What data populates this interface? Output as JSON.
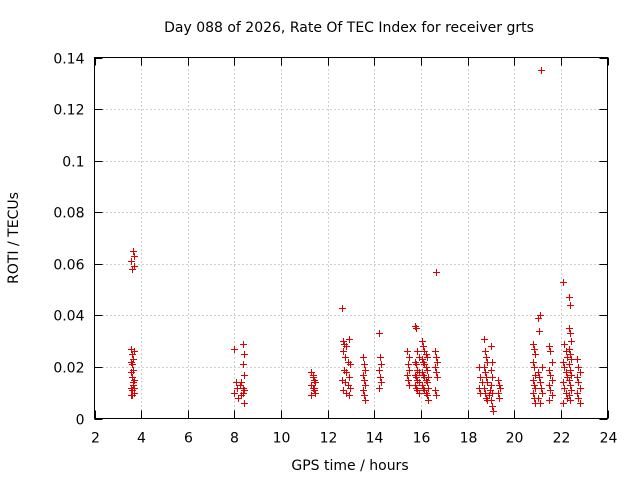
{
  "chart_data": {
    "type": "scatter",
    "title": "Day 088 of 2026, Rate Of TEC Index for receiver grts",
    "xlabel": "GPS time / hours",
    "ylabel": "ROTI / TECUs",
    "xlim": [
      2,
      24
    ],
    "ylim": [
      0,
      0.14
    ],
    "xticks": [
      2,
      4,
      6,
      8,
      10,
      12,
      14,
      16,
      18,
      20,
      22,
      24
    ],
    "xtick_labels": [
      "2",
      "4",
      "6",
      "8",
      "10",
      "12",
      "14",
      "16",
      "18",
      "20",
      "22",
      "24"
    ],
    "yticks": [
      0,
      0.02,
      0.04,
      0.06,
      0.08,
      0.1,
      0.12,
      0.14
    ],
    "ytick_labels": [
      "0",
      "0.02",
      "0.04",
      "0.06",
      "0.08",
      "0.1",
      "0.12",
      "0.14"
    ],
    "grid": true,
    "marker": "plus",
    "color": "#e00000",
    "series": [
      {
        "name": "ROTI",
        "points": [
          [
            3.55,
            0.061
          ],
          [
            3.6,
            0.058
          ],
          [
            3.65,
            0.065
          ],
          [
            3.7,
            0.063
          ],
          [
            3.68,
            0.059
          ],
          [
            3.55,
            0.027
          ],
          [
            3.6,
            0.025
          ],
          [
            3.65,
            0.023
          ],
          [
            3.7,
            0.026
          ],
          [
            3.62,
            0.021
          ],
          [
            3.55,
            0.018
          ],
          [
            3.6,
            0.016
          ],
          [
            3.7,
            0.015
          ],
          [
            3.65,
            0.013
          ],
          [
            3.58,
            0.012
          ],
          [
            3.6,
            0.011
          ],
          [
            3.68,
            0.01
          ],
          [
            3.55,
            0.009
          ],
          [
            3.62,
            0.009
          ],
          [
            3.7,
            0.012
          ],
          [
            3.63,
            0.014
          ],
          [
            3.57,
            0.022
          ],
          [
            3.66,
            0.019
          ],
          [
            8.0,
            0.027
          ],
          [
            8.05,
            0.014
          ],
          [
            8.1,
            0.012
          ],
          [
            8.0,
            0.01
          ],
          [
            8.15,
            0.008
          ],
          [
            8.35,
            0.029
          ],
          [
            8.4,
            0.025
          ],
          [
            8.35,
            0.021
          ],
          [
            8.4,
            0.017
          ],
          [
            8.3,
            0.014
          ],
          [
            8.35,
            0.012
          ],
          [
            8.4,
            0.011
          ],
          [
            8.3,
            0.009
          ],
          [
            8.4,
            0.006
          ],
          [
            8.35,
            0.01
          ],
          [
            8.25,
            0.013
          ],
          [
            11.3,
            0.018
          ],
          [
            11.35,
            0.016
          ],
          [
            11.4,
            0.015
          ],
          [
            11.45,
            0.014
          ],
          [
            11.3,
            0.013
          ],
          [
            11.35,
            0.012
          ],
          [
            11.4,
            0.011
          ],
          [
            11.45,
            0.01
          ],
          [
            11.3,
            0.009
          ],
          [
            11.38,
            0.017
          ],
          [
            11.42,
            0.012
          ],
          [
            12.6,
            0.043
          ],
          [
            12.65,
            0.03
          ],
          [
            12.7,
            0.029
          ],
          [
            12.8,
            0.028
          ],
          [
            12.9,
            0.031
          ],
          [
            12.65,
            0.026
          ],
          [
            12.75,
            0.024
          ],
          [
            12.85,
            0.022
          ],
          [
            12.95,
            0.021
          ],
          [
            12.7,
            0.019
          ],
          [
            12.8,
            0.018
          ],
          [
            12.9,
            0.016
          ],
          [
            12.6,
            0.015
          ],
          [
            12.75,
            0.014
          ],
          [
            12.85,
            0.013
          ],
          [
            12.95,
            0.012
          ],
          [
            12.65,
            0.011
          ],
          [
            12.8,
            0.01
          ],
          [
            12.9,
            0.009
          ],
          [
            13.5,
            0.024
          ],
          [
            13.55,
            0.021
          ],
          [
            13.6,
            0.019
          ],
          [
            13.5,
            0.017
          ],
          [
            13.55,
            0.015
          ],
          [
            13.6,
            0.013
          ],
          [
            13.5,
            0.011
          ],
          [
            13.55,
            0.009
          ],
          [
            13.6,
            0.007
          ],
          [
            14.2,
            0.033
          ],
          [
            14.25,
            0.024
          ],
          [
            14.3,
            0.021
          ],
          [
            14.2,
            0.019
          ],
          [
            14.25,
            0.016
          ],
          [
            14.3,
            0.014
          ],
          [
            14.2,
            0.012
          ],
          [
            15.4,
            0.026
          ],
          [
            15.5,
            0.024
          ],
          [
            15.45,
            0.021
          ],
          [
            15.5,
            0.019
          ],
          [
            15.4,
            0.017
          ],
          [
            15.45,
            0.015
          ],
          [
            15.5,
            0.013
          ],
          [
            15.75,
            0.036
          ],
          [
            15.8,
            0.035
          ],
          [
            15.85,
            0.026
          ],
          [
            15.9,
            0.024
          ],
          [
            15.75,
            0.022
          ],
          [
            15.8,
            0.021
          ],
          [
            15.85,
            0.019
          ],
          [
            15.9,
            0.018
          ],
          [
            15.75,
            0.017
          ],
          [
            15.8,
            0.016
          ],
          [
            15.85,
            0.015
          ],
          [
            15.9,
            0.014
          ],
          [
            15.75,
            0.013
          ],
          [
            15.8,
            0.012
          ],
          [
            15.85,
            0.011
          ],
          [
            15.9,
            0.01
          ],
          [
            16.05,
            0.03
          ],
          [
            16.1,
            0.028
          ],
          [
            16.15,
            0.026
          ],
          [
            16.2,
            0.025
          ],
          [
            16.25,
            0.024
          ],
          [
            16.05,
            0.023
          ],
          [
            16.1,
            0.022
          ],
          [
            16.15,
            0.021
          ],
          [
            16.2,
            0.02
          ],
          [
            16.25,
            0.019
          ],
          [
            16.05,
            0.018
          ],
          [
            16.1,
            0.017
          ],
          [
            16.15,
            0.016
          ],
          [
            16.2,
            0.015
          ],
          [
            16.25,
            0.014
          ],
          [
            16.05,
            0.013
          ],
          [
            16.1,
            0.012
          ],
          [
            16.15,
            0.011
          ],
          [
            16.2,
            0.01
          ],
          [
            16.25,
            0.009
          ],
          [
            16.3,
            0.007
          ],
          [
            16.3,
            0.012
          ],
          [
            16.3,
            0.016
          ],
          [
            16.65,
            0.057
          ],
          [
            16.6,
            0.026
          ],
          [
            16.65,
            0.024
          ],
          [
            16.7,
            0.022
          ],
          [
            16.6,
            0.02
          ],
          [
            16.65,
            0.018
          ],
          [
            16.7,
            0.016
          ],
          [
            16.6,
            0.011
          ],
          [
            16.65,
            0.009
          ],
          [
            18.5,
            0.02
          ],
          [
            18.55,
            0.016
          ],
          [
            18.6,
            0.014
          ],
          [
            18.5,
            0.012
          ],
          [
            18.55,
            0.01
          ],
          [
            18.7,
            0.031
          ],
          [
            18.75,
            0.026
          ],
          [
            18.8,
            0.024
          ],
          [
            18.85,
            0.022
          ],
          [
            18.7,
            0.02
          ],
          [
            18.75,
            0.018
          ],
          [
            18.8,
            0.016
          ],
          [
            18.85,
            0.014
          ],
          [
            18.7,
            0.012
          ],
          [
            18.75,
            0.01
          ],
          [
            18.8,
            0.008
          ],
          [
            18.85,
            0.007
          ],
          [
            18.9,
            0.009
          ],
          [
            18.95,
            0.011
          ],
          [
            19.0,
            0.028
          ],
          [
            19.05,
            0.022
          ],
          [
            19.0,
            0.019
          ],
          [
            19.05,
            0.016
          ],
          [
            19.0,
            0.013
          ],
          [
            19.05,
            0.01
          ],
          [
            19.0,
            0.007
          ],
          [
            19.05,
            0.005
          ],
          [
            19.1,
            0.003
          ],
          [
            19.3,
            0.015
          ],
          [
            19.35,
            0.013
          ],
          [
            19.4,
            0.012
          ],
          [
            19.3,
            0.01
          ],
          [
            19.35,
            0.008
          ],
          [
            20.8,
            0.029
          ],
          [
            20.85,
            0.027
          ],
          [
            20.9,
            0.025
          ],
          [
            20.8,
            0.022
          ],
          [
            20.85,
            0.02
          ],
          [
            20.9,
            0.017
          ],
          [
            20.8,
            0.015
          ],
          [
            20.85,
            0.013
          ],
          [
            20.9,
            0.012
          ],
          [
            20.8,
            0.01
          ],
          [
            20.85,
            0.008
          ],
          [
            20.9,
            0.006
          ],
          [
            21.0,
            0.039
          ],
          [
            21.05,
            0.034
          ],
          [
            21.1,
            0.04
          ],
          [
            21.15,
            0.135
          ],
          [
            21.2,
            0.02
          ],
          [
            21.0,
            0.018
          ],
          [
            21.05,
            0.016
          ],
          [
            21.1,
            0.014
          ],
          [
            21.15,
            0.012
          ],
          [
            21.2,
            0.01
          ],
          [
            21.0,
            0.008
          ],
          [
            21.1,
            0.006
          ],
          [
            21.5,
            0.028
          ],
          [
            21.55,
            0.026
          ],
          [
            21.6,
            0.022
          ],
          [
            21.5,
            0.019
          ],
          [
            21.55,
            0.017
          ],
          [
            21.6,
            0.015
          ],
          [
            21.5,
            0.013
          ],
          [
            21.55,
            0.011
          ],
          [
            21.6,
            0.009
          ],
          [
            21.5,
            0.007
          ],
          [
            22.1,
            0.053
          ],
          [
            22.15,
            0.029
          ],
          [
            22.2,
            0.026
          ],
          [
            22.25,
            0.024
          ],
          [
            22.1,
            0.022
          ],
          [
            22.15,
            0.02
          ],
          [
            22.2,
            0.018
          ],
          [
            22.25,
            0.016
          ],
          [
            22.1,
            0.014
          ],
          [
            22.15,
            0.012
          ],
          [
            22.2,
            0.01
          ],
          [
            22.25,
            0.008
          ],
          [
            22.1,
            0.006
          ],
          [
            22.35,
            0.047
          ],
          [
            22.4,
            0.044
          ],
          [
            22.35,
            0.035
          ],
          [
            22.4,
            0.033
          ],
          [
            22.45,
            0.03
          ],
          [
            22.35,
            0.027
          ],
          [
            22.4,
            0.025
          ],
          [
            22.45,
            0.023
          ],
          [
            22.35,
            0.021
          ],
          [
            22.4,
            0.019
          ],
          [
            22.45,
            0.017
          ],
          [
            22.35,
            0.015
          ],
          [
            22.4,
            0.013
          ],
          [
            22.45,
            0.011
          ],
          [
            22.35,
            0.009
          ],
          [
            22.4,
            0.007
          ],
          [
            22.7,
            0.023
          ],
          [
            22.75,
            0.02
          ],
          [
            22.8,
            0.018
          ],
          [
            22.7,
            0.016
          ],
          [
            22.75,
            0.014
          ],
          [
            22.8,
            0.012
          ],
          [
            22.7,
            0.01
          ],
          [
            22.75,
            0.008
          ],
          [
            22.8,
            0.006
          ]
        ]
      }
    ]
  }
}
